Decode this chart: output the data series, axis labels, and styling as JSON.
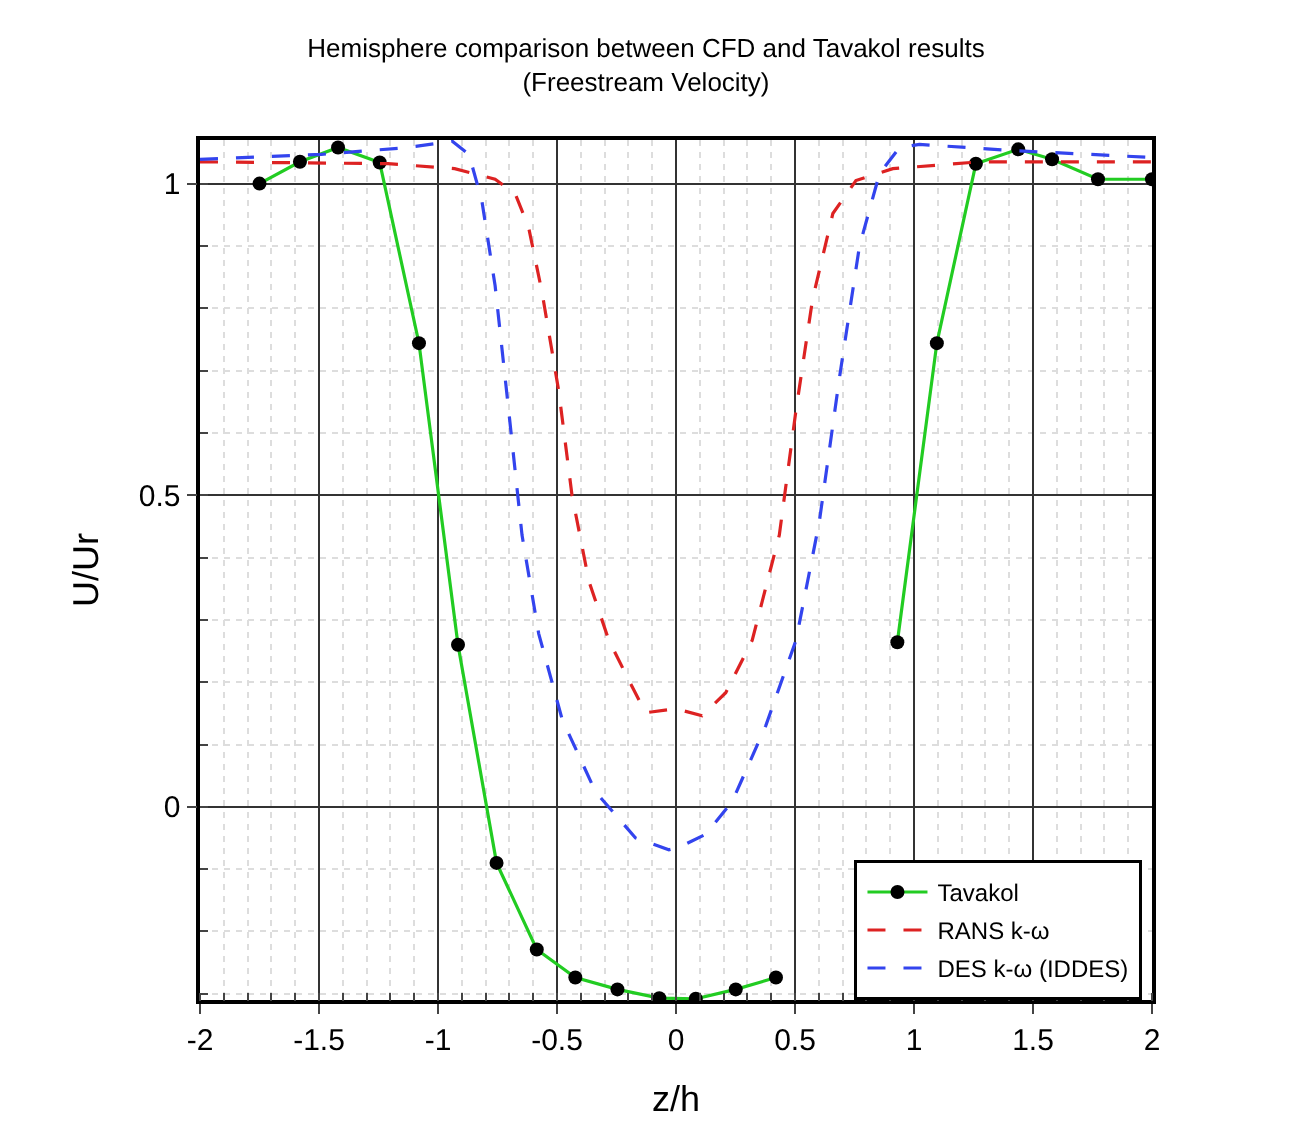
{
  "chart_data": {
    "type": "line",
    "title": "Hemisphere comparison between CFD and Tavakol results\n(Freestream Velocity)",
    "xlabel": "z/h",
    "ylabel": "U/Ur",
    "xlim": [
      -2,
      2
    ],
    "ylim": [
      -0.31,
      1.07
    ],
    "xticks": [
      -2,
      -1.5,
      -1,
      -0.5,
      0,
      0.5,
      1,
      1.5,
      2
    ],
    "yticks": [
      0,
      0.5,
      1
    ],
    "grid": true,
    "legend": "bottom right",
    "series": [
      {
        "name": "Tavakol",
        "color": "#22cc22",
        "marker": "circle",
        "line_style": "solid",
        "x": [
          -1.75,
          -1.58,
          -1.42,
          -1.245,
          -1.08,
          -0.916,
          -0.754,
          -0.585,
          -0.423,
          -0.246,
          -0.07,
          0.083,
          0.251,
          0.42,
          0.585,
          0.754,
          0.93,
          1.096,
          1.26,
          1.438,
          1.58,
          1.773,
          2.0
        ],
        "values": [
          1.0,
          1.035,
          1.058,
          1.034,
          0.744,
          0.26,
          -0.09,
          -0.229,
          -0.274,
          -0.293,
          -0.307,
          -0.308,
          -0.293,
          -0.274,
          null,
          null,
          0.264,
          0.744,
          1.032,
          1.055,
          1.039,
          1.007,
          1.007
        ]
      },
      {
        "name": "RANS k-ω",
        "color": "#dd2222",
        "marker": "none",
        "line_style": "dashed",
        "x": [
          -2,
          -1.21,
          -0.93,
          -0.76,
          -0.676,
          -0.62,
          -0.563,
          -0.493,
          -0.437,
          -0.366,
          -0.282,
          -0.198,
          -0.128,
          -0.03,
          0.013,
          0.11,
          0.209,
          0.32,
          0.434,
          0.504,
          0.574,
          0.659,
          0.756,
          0.911,
          1.276,
          2
        ],
        "values": [
          1.035,
          1.032,
          1.024,
          1.007,
          0.984,
          0.931,
          0.826,
          0.668,
          0.5,
          0.362,
          0.267,
          0.203,
          0.151,
          0.156,
          0.156,
          0.146,
          0.183,
          0.267,
          0.436,
          0.636,
          0.815,
          0.952,
          1.005,
          1.024,
          1.035,
          1.035
        ]
      },
      {
        "name": "DES k-ω (IDDES)",
        "color": "#3344ee",
        "marker": "none",
        "line_style": "dashed",
        "x": [
          -2,
          -1.49,
          -1.125,
          -0.94,
          -0.87,
          -0.816,
          -0.76,
          -0.703,
          -0.647,
          -0.577,
          -0.478,
          -0.338,
          -0.17,
          -0.03,
          0.013,
          0.125,
          0.237,
          0.377,
          0.504,
          0.602,
          0.687,
          0.771,
          0.855,
          0.939,
          1.023,
          1.416,
          2
        ],
        "values": [
          1.039,
          1.047,
          1.058,
          1.068,
          1.047,
          0.973,
          0.836,
          0.636,
          0.436,
          0.278,
          0.14,
          0.024,
          -0.05,
          -0.069,
          -0.065,
          -0.044,
          0.009,
          0.13,
          0.267,
          0.457,
          0.689,
          0.9,
          1.016,
          1.058,
          1.063,
          1.053,
          1.042
        ]
      }
    ]
  }
}
